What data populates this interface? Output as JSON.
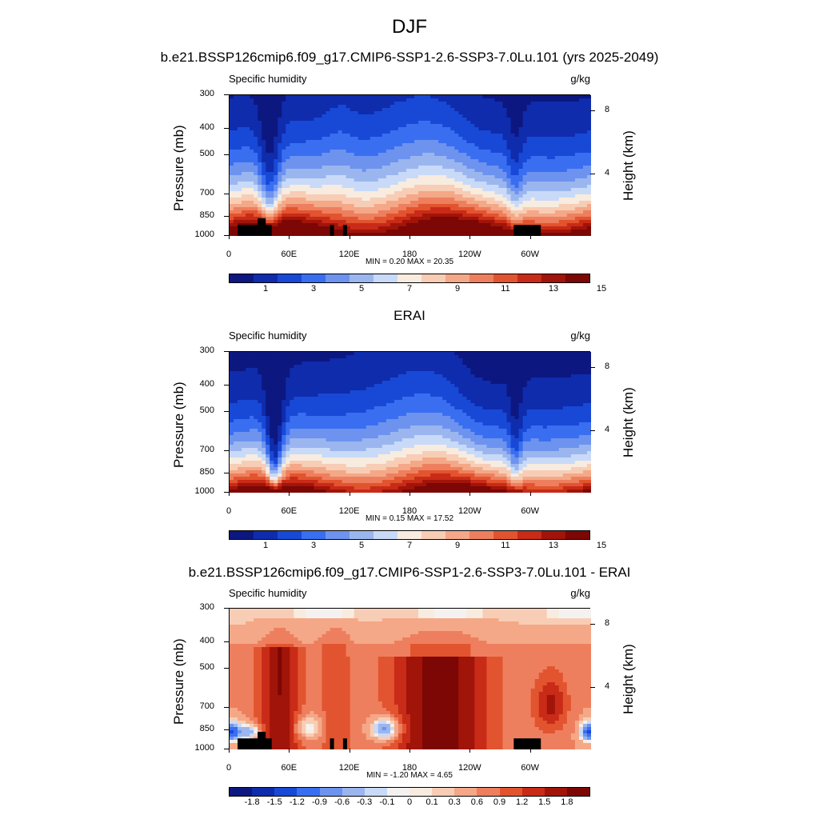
{
  "page": {
    "title": "DJF"
  },
  "palette": {
    "main": [
      "#0d1780",
      "#0f2cad",
      "#1849d6",
      "#3a6ef0",
      "#6d93ef",
      "#9bb6ef",
      "#c8daf8",
      "#f7ecdf",
      "#f8cdb5",
      "#f4a887",
      "#ee7f5e",
      "#e2542f",
      "#c82b17",
      "#a11409",
      "#7c0704"
    ],
    "diff": [
      "#0d1780",
      "#0f2cad",
      "#1849d6",
      "#3a6ef0",
      "#6d93ef",
      "#9bb6ef",
      "#c8daf8",
      "#f4f2f0",
      "#f7ecdf",
      "#f8cdb5",
      "#f4a887",
      "#ee7f5e",
      "#e2542f",
      "#c82b17",
      "#a11409",
      "#7c0704"
    ]
  },
  "chart_data": [
    {
      "type": "heatmap",
      "title": "b.e21.BSSP126cmip6.f09_g17.CMIP6-SSP1-2.6-SSP3-7.0Lu.101 (yrs 2025-2049)",
      "left_label": "Specific humidity",
      "units": "g/kg",
      "ylabel": "Pressure (mb)",
      "ylabel_right": "Height (km)",
      "y_ticks": [
        "300",
        "400",
        "500",
        "700",
        "850",
        "1000"
      ],
      "y_tick_values": [
        300,
        400,
        500,
        700,
        850,
        1000
      ],
      "ylim": [
        300,
        1000
      ],
      "height_ticks": [
        "8",
        "4"
      ],
      "height_tick_values": [
        8,
        4
      ],
      "x_ticks": [
        "0",
        "60E",
        "120E",
        "180",
        "120W",
        "60W"
      ],
      "x_tick_values": [
        0,
        60,
        120,
        180,
        240,
        300
      ],
      "xlim": [
        0,
        360
      ],
      "minmax": "MIN =   0.20  MAX =  20.35",
      "colorbar_labels": [
        "1",
        "3",
        "5",
        "7",
        "9",
        "11",
        "13",
        "15"
      ],
      "colorbar_label_positions": [
        0.5,
        2.5,
        4.5,
        6.5,
        8.5,
        10.5,
        12.5,
        14.5
      ],
      "field_type": "model",
      "terrain": true
    },
    {
      "type": "heatmap",
      "title": "ERAI",
      "left_label": "Specific humidity",
      "units": "g/kg",
      "ylabel": "Pressure (mb)",
      "ylabel_right": "Height (km)",
      "y_ticks": [
        "300",
        "400",
        "500",
        "700",
        "850",
        "1000"
      ],
      "y_tick_values": [
        300,
        400,
        500,
        700,
        850,
        1000
      ],
      "ylim": [
        300,
        1000
      ],
      "height_ticks": [
        "8",
        "4"
      ],
      "height_tick_values": [
        8,
        4
      ],
      "x_ticks": [
        "0",
        "60E",
        "120E",
        "180",
        "120W",
        "60W"
      ],
      "x_tick_values": [
        0,
        60,
        120,
        180,
        240,
        300
      ],
      "xlim": [
        0,
        360
      ],
      "minmax": "MIN =   0.15  MAX =  17.52",
      "colorbar_labels": [
        "1",
        "3",
        "5",
        "7",
        "9",
        "11",
        "13",
        "15"
      ],
      "colorbar_label_positions": [
        0.5,
        2.5,
        4.5,
        6.5,
        8.5,
        10.5,
        12.5,
        14.5
      ],
      "field_type": "obs",
      "terrain": false
    },
    {
      "type": "heatmap",
      "title": "b.e21.BSSP126cmip6.f09_g17.CMIP6-SSP1-2.6-SSP3-7.0Lu.101 - ERAI",
      "left_label": "Specific humidity",
      "units": "g/kg",
      "ylabel": "Pressure (mb)",
      "ylabel_right": "Height (km)",
      "y_ticks": [
        "300",
        "400",
        "500",
        "700",
        "850",
        "1000"
      ],
      "y_tick_values": [
        300,
        400,
        500,
        700,
        850,
        1000
      ],
      "ylim": [
        300,
        1000
      ],
      "height_ticks": [
        "8",
        "4"
      ],
      "height_tick_values": [
        8,
        4
      ],
      "x_ticks": [
        "0",
        "60E",
        "120E",
        "180",
        "120W",
        "60W"
      ],
      "x_tick_values": [
        0,
        60,
        120,
        180,
        240,
        300
      ],
      "xlim": [
        0,
        360
      ],
      "minmax": "MIN =  -1.20  MAX =   4.65",
      "colorbar_labels": [
        "-1.8",
        "-1.5",
        "-1.2",
        "-0.9",
        "-0.6",
        "-0.3",
        "-0.1",
        "0",
        "0.1",
        "0.3",
        "0.6",
        "0.9",
        "1.2",
        "1.5",
        "1.8"
      ],
      "colorbar_label_positions": [
        1,
        2,
        3,
        4,
        5,
        6,
        7,
        8,
        9,
        10,
        11,
        12,
        13,
        14,
        15
      ],
      "field_type": "diff",
      "terrain": true
    }
  ]
}
